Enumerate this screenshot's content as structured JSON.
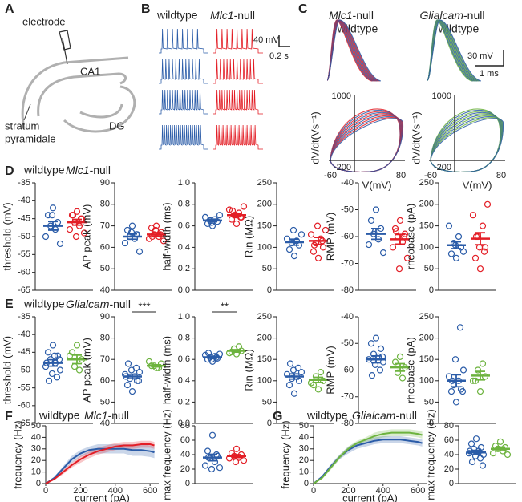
{
  "panel_labels": [
    "A",
    "B",
    "C",
    "D",
    "E",
    "F",
    "G"
  ],
  "panel_a": {
    "electrode": "electrode",
    "region": "CA1",
    "layer": [
      "stratum",
      "pyramidale"
    ],
    "dentate": "DG"
  },
  "panel_b": {
    "legend": [
      "wildtype",
      "Mlc1-null"
    ],
    "colors": [
      "#2b5ca8",
      "#e31e26"
    ],
    "scale_y": "40 mV",
    "scale_x": "0.2 s"
  },
  "panel_c": {
    "left_legend": [
      "Mlc1-null",
      "wildtype"
    ],
    "left_colors": [
      "#e31e26",
      "#2b5ca8"
    ],
    "right_legend": [
      "Glialcam-null",
      "wildtype"
    ],
    "right_colors": [
      "#6db33f",
      "#2b5ca8"
    ],
    "scale_y": "30 mV",
    "scale_x": "1 ms",
    "phase_ylabel": "dV/dt(Vs⁻¹)",
    "phase_xlabel": "V(mV)",
    "phase_yticks": [
      1000,
      -200
    ],
    "phase_xticks": [
      -60,
      80
    ]
  },
  "row_legends": [
    {
      "entries": [
        "wildtype",
        "Mlc1-null"
      ],
      "colors": [
        "#2b5ca8",
        "#e31e26"
      ]
    },
    {
      "entries": [
        "wildtype",
        "Glialcam-null"
      ],
      "colors": [
        "#2b5ca8",
        "#6db33f"
      ]
    }
  ],
  "chart_data": [
    {
      "type": "strip",
      "ylabel": "threshold (mV)",
      "ylim": [
        -65,
        -35
      ],
      "yticks": [
        -35,
        -40,
        -45,
        -50,
        -55,
        -60,
        -65
      ],
      "series": [
        {
          "color": "#2b5ca8",
          "values": [
            -42,
            -44,
            -46,
            -47,
            -48,
            -50,
            -52,
            -44
          ],
          "mean": -47,
          "sem": 1.2
        },
        {
          "color": "#e31e26",
          "values": [
            -43,
            -44,
            -45,
            -46,
            -47,
            -48,
            -49,
            -50,
            -45,
            -44
          ],
          "mean": -46,
          "sem": 0.8
        }
      ]
    },
    {
      "type": "strip",
      "ylabel": "AP peak (mV)",
      "ylim": [
        40,
        90
      ],
      "yticks": [
        40,
        50,
        60,
        70,
        80,
        90
      ],
      "series": [
        {
          "color": "#2b5ca8",
          "values": [
            70,
            68,
            66,
            65,
            64,
            62,
            58,
            67,
            66
          ],
          "mean": 65,
          "sem": 1.2
        },
        {
          "color": "#e31e26",
          "values": [
            70,
            69,
            67,
            66,
            65,
            64,
            63,
            68,
            66,
            65
          ],
          "mean": 66,
          "sem": 0.8
        }
      ]
    },
    {
      "type": "strip",
      "ylabel": "half-width (ms)",
      "ylim": [
        0,
        1
      ],
      "yticks": [
        {
          "value": 0,
          "label": "0.0"
        },
        0.2,
        0.4,
        0.6,
        0.8,
        {
          "value": 1,
          "label": "1.0"
        }
      ],
      "series": [
        {
          "color": "#2b5ca8",
          "values": [
            0.6,
            0.62,
            0.64,
            0.65,
            0.66,
            0.68,
            0.7,
            0.63
          ],
          "mean": 0.65,
          "sem": 0.012
        },
        {
          "color": "#e31e26",
          "values": [
            0.62,
            0.66,
            0.68,
            0.7,
            0.72,
            0.75,
            0.78,
            0.7,
            0.68,
            0.74
          ],
          "mean": 0.7,
          "sem": 0.015
        }
      ]
    },
    {
      "type": "strip",
      "ylabel": "Rin (MΩ)",
      "ylim": [
        0,
        250
      ],
      "yticks": [
        0,
        50,
        100,
        150,
        200,
        250
      ],
      "series": [
        {
          "color": "#2b5ca8",
          "values": [
            80,
            95,
            105,
            110,
            115,
            120,
            130,
            140
          ],
          "mean": 112,
          "sem": 7
        },
        {
          "color": "#e31e26",
          "values": [
            75,
            90,
            100,
            110,
            120,
            130,
            140,
            150,
            115,
            105
          ],
          "mean": 115,
          "sem": 8
        }
      ]
    },
    {
      "type": "strip",
      "ylabel": "RMP (mV)",
      "ylim": [
        -80,
        -40
      ],
      "yticks": [
        -40,
        -50,
        -60,
        -70,
        -80
      ],
      "series": [
        {
          "color": "#2b5ca8",
          "values": [
            -50,
            -54,
            -57,
            -59,
            -61,
            -63,
            -66,
            -58
          ],
          "mean": -59,
          "sem": 2
        },
        {
          "color": "#e31e26",
          "values": [
            -54,
            -57,
            -59,
            -60,
            -62,
            -64,
            -68,
            -72,
            -60,
            -58
          ],
          "mean": -61,
          "sem": 1.8
        }
      ]
    },
    {
      "type": "strip",
      "ylabel": "rheobase (pA)",
      "ylim": [
        0,
        250
      ],
      "yticks": [
        0,
        50,
        100,
        150,
        200,
        250
      ],
      "series": [
        {
          "color": "#2b5ca8",
          "values": [
            75,
            85,
            100,
            110,
            125,
            150,
            90,
            105
          ],
          "mean": 105,
          "sem": 8
        },
        {
          "color": "#e31e26",
          "values": [
            50,
            75,
            100,
            125,
            150,
            175,
            200,
            100,
            90,
            125
          ],
          "mean": 120,
          "sem": 14
        }
      ]
    },
    {
      "type": "strip",
      "ylabel": "threshold (mV)",
      "ylim": [
        -65,
        -35
      ],
      "yticks": [
        -35,
        -40,
        -45,
        -50,
        -55,
        -60,
        -65
      ],
      "series": [
        {
          "color": "#2b5ca8",
          "values": [
            -43,
            -45,
            -46,
            -47,
            -48,
            -49,
            -50,
            -51,
            -52,
            -53,
            -47,
            -48,
            -46
          ],
          "mean": -48,
          "sem": 0.9
        },
        {
          "color": "#6db33f",
          "values": [
            -43,
            -45,
            -47,
            -49,
            -50,
            -46
          ],
          "mean": -47,
          "sem": 1.2
        }
      ]
    },
    {
      "type": "strip",
      "ylabel": "AP peak (mV)",
      "ylim": [
        40,
        90
      ],
      "yticks": [
        40,
        50,
        60,
        70,
        80,
        90
      ],
      "annotation": "***",
      "series": [
        {
          "color": "#2b5ca8",
          "values": [
            55,
            58,
            60,
            61,
            62,
            63,
            64,
            65,
            66,
            68,
            60,
            62
          ],
          "mean": 62,
          "sem": 1
        },
        {
          "color": "#6db33f",
          "values": [
            66,
            67,
            68,
            67,
            66,
            69
          ],
          "mean": 67,
          "sem": 0.5
        }
      ]
    },
    {
      "type": "strip",
      "ylabel": "half-width (ms)",
      "ylim": [
        0,
        1
      ],
      "yticks": [
        {
          "value": 0,
          "label": "0.0"
        },
        0.2,
        0.4,
        0.6,
        0.8,
        {
          "value": 1,
          "label": "1.0"
        }
      ],
      "annotation": "**",
      "series": [
        {
          "color": "#2b5ca8",
          "values": [
            0.58,
            0.6,
            0.61,
            0.62,
            0.63,
            0.64,
            0.65,
            0.6,
            0.62,
            0.66
          ],
          "mean": 0.62,
          "sem": 0.01
        },
        {
          "color": "#6db33f",
          "values": [
            0.65,
            0.67,
            0.68,
            0.7,
            0.72,
            0.66
          ],
          "mean": 0.68,
          "sem": 0.012
        }
      ]
    },
    {
      "type": "strip",
      "ylabel": "Rin (MΩ)",
      "ylim": [
        0,
        250
      ],
      "yticks": [
        0,
        50,
        100,
        150,
        200,
        250
      ],
      "series": [
        {
          "color": "#2b5ca8",
          "values": [
            70,
            90,
            100,
            105,
            110,
            115,
            120,
            125,
            130,
            140
          ],
          "mean": 110,
          "sem": 6
        },
        {
          "color": "#6db33f",
          "values": [
            80,
            90,
            100,
            110,
            120,
            95
          ],
          "mean": 102,
          "sem": 6
        }
      ]
    },
    {
      "type": "strip",
      "ylabel": "RMP (mV)",
      "ylim": [
        -80,
        -40
      ],
      "yticks": [
        -40,
        -50,
        -60,
        -70,
        -80
      ],
      "series": [
        {
          "color": "#2b5ca8",
          "values": [
            -48,
            -50,
            -52,
            -54,
            -55,
            -56,
            -57,
            -58,
            -60,
            -62,
            -55
          ],
          "mean": -56,
          "sem": 1.3
        },
        {
          "color": "#6db33f",
          "values": [
            -55,
            -57,
            -59,
            -61,
            -63
          ],
          "mean": -59,
          "sem": 1.4
        }
      ]
    },
    {
      "type": "strip",
      "ylabel": "rheobase (pA)",
      "ylim": [
        0,
        250
      ],
      "yticks": [
        0,
        50,
        100,
        150,
        200,
        250
      ],
      "series": [
        {
          "color": "#2b5ca8",
          "values": [
            50,
            75,
            80,
            90,
            100,
            110,
            125,
            150,
            225,
            100,
            75
          ],
          "mean": 100,
          "sem": 14
        },
        {
          "color": "#6db33f",
          "values": [
            75,
            100,
            110,
            125,
            140,
            100
          ],
          "mean": 112,
          "sem": 10
        }
      ]
    },
    {
      "type": "line",
      "xlabel": "current (pA)",
      "ylabel": "frequency (Hz)",
      "xlim": [
        0,
        650
      ],
      "xticks": [
        0,
        200,
        400,
        600
      ],
      "ylim": [
        0,
        50
      ],
      "yticks": [
        0,
        10,
        20,
        30,
        40,
        50
      ],
      "x": [
        0,
        50,
        100,
        150,
        200,
        250,
        300,
        350,
        400,
        450,
        500,
        550,
        600,
        625
      ],
      "series": [
        {
          "name": "wildtype",
          "color": "#2b5ca8",
          "values": [
            0,
            5,
            13,
            21,
            26,
            29,
            30,
            30,
            30,
            30,
            29,
            29,
            28,
            27
          ],
          "error": [
            0,
            1,
            2,
            3,
            3,
            3,
            4,
            4,
            4,
            4,
            5,
            5,
            5,
            5
          ]
        },
        {
          "name": "Mlc1-null",
          "color": "#e31e26",
          "values": [
            0,
            4,
            10,
            16,
            21,
            25,
            28,
            30,
            32,
            33,
            33,
            34,
            34,
            33
          ],
          "error": [
            0,
            1,
            2,
            2,
            3,
            3,
            3,
            3,
            3,
            3,
            3,
            3,
            3,
            3
          ]
        }
      ]
    },
    {
      "type": "strip",
      "ylabel": "max frequency (Hz)",
      "ylim": [
        0,
        80
      ],
      "yticks": [
        0,
        20,
        40,
        60,
        80
      ],
      "series": [
        {
          "color": "#2b5ca8",
          "values": [
            67,
            45,
            38,
            35,
            30,
            25,
            22,
            20,
            40,
            36
          ],
          "mean": 36,
          "sem": 4.5
        },
        {
          "color": "#e31e26",
          "values": [
            48,
            42,
            40,
            38,
            36,
            35,
            32,
            30
          ],
          "mean": 38,
          "sem": 2
        }
      ]
    },
    {
      "type": "line",
      "xlabel": "current (pA)",
      "ylabel": "frequency (Hz)",
      "xlim": [
        0,
        650
      ],
      "xticks": [
        0,
        200,
        400,
        600
      ],
      "ylim": [
        0,
        50
      ],
      "yticks": [
        0,
        10,
        20,
        30,
        40,
        50
      ],
      "x": [
        0,
        50,
        100,
        150,
        200,
        250,
        300,
        350,
        400,
        450,
        500,
        550,
        600,
        625
      ],
      "series": [
        {
          "name": "wildtype",
          "color": "#2b5ca8",
          "values": [
            0,
            6,
            15,
            23,
            29,
            33,
            35,
            37,
            38,
            38,
            38,
            37,
            36,
            35
          ],
          "error": [
            0,
            1,
            2,
            2,
            3,
            3,
            3,
            3,
            3,
            3,
            3,
            3,
            3,
            3
          ]
        },
        {
          "name": "Glialcam-null",
          "color": "#6db33f",
          "values": [
            0,
            5,
            14,
            23,
            30,
            35,
            38,
            41,
            43,
            44,
            44,
            44,
            43,
            42
          ],
          "error": [
            0,
            1,
            2,
            2,
            2,
            2,
            2,
            3,
            3,
            3,
            3,
            3,
            3,
            3
          ]
        }
      ]
    },
    {
      "type": "strip",
      "ylabel": "max frequency (Hz)",
      "ylim": [
        0,
        80
      ],
      "yticks": [
        0,
        20,
        40,
        60,
        80
      ],
      "series": [
        {
          "color": "#2b5ca8",
          "values": [
            62,
            55,
            50,
            48,
            45,
            42,
            40,
            38,
            35,
            30,
            25,
            45
          ],
          "mean": 43,
          "sem": 3
        },
        {
          "color": "#6db33f",
          "values": [
            58,
            52,
            50,
            48,
            45,
            42,
            40
          ],
          "mean": 48,
          "sem": 2.5
        }
      ]
    }
  ]
}
